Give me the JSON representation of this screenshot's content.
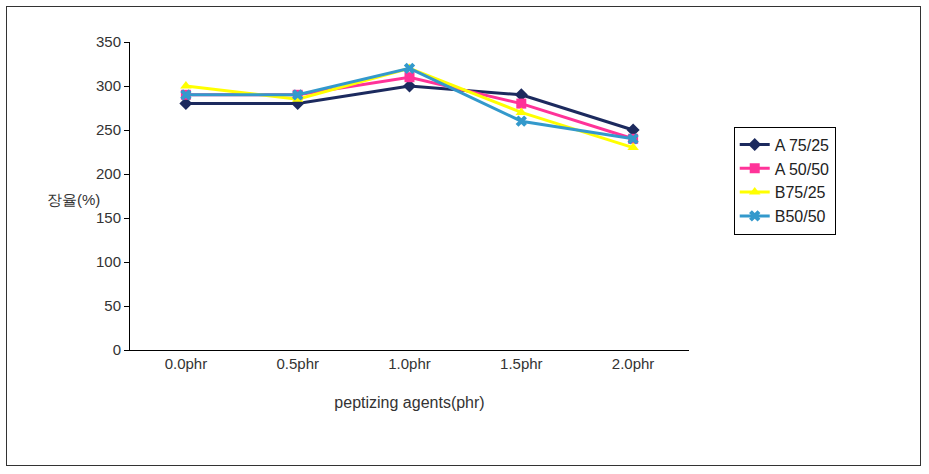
{
  "chart_data": {
    "type": "line",
    "xlabel": "peptizing agents(phr)",
    "ylabel": "장율(%)",
    "categories": [
      "0.0phr",
      "0.5phr",
      "1.0phr",
      "1.5phr",
      "2.0phr"
    ],
    "series": [
      {
        "name": "A 75/25",
        "color": "#1c2a5e",
        "marker": "diamond",
        "values": [
          280,
          280,
          300,
          290,
          250
        ]
      },
      {
        "name": "A 50/50",
        "color": "#ff3399",
        "marker": "square",
        "values": [
          290,
          290,
          310,
          280,
          240
        ]
      },
      {
        "name": "B75/25",
        "color": "#ffff00",
        "marker": "triangle",
        "values": [
          300,
          285,
          320,
          270,
          230
        ]
      },
      {
        "name": "B50/50",
        "color": "#3399cc",
        "marker": "x",
        "values": [
          290,
          290,
          320,
          260,
          240
        ]
      }
    ],
    "ylim": [
      0,
      350
    ],
    "yticks": [
      0,
      50,
      100,
      150,
      200,
      250,
      300,
      350
    ],
    "grid": false,
    "legend": "right"
  }
}
